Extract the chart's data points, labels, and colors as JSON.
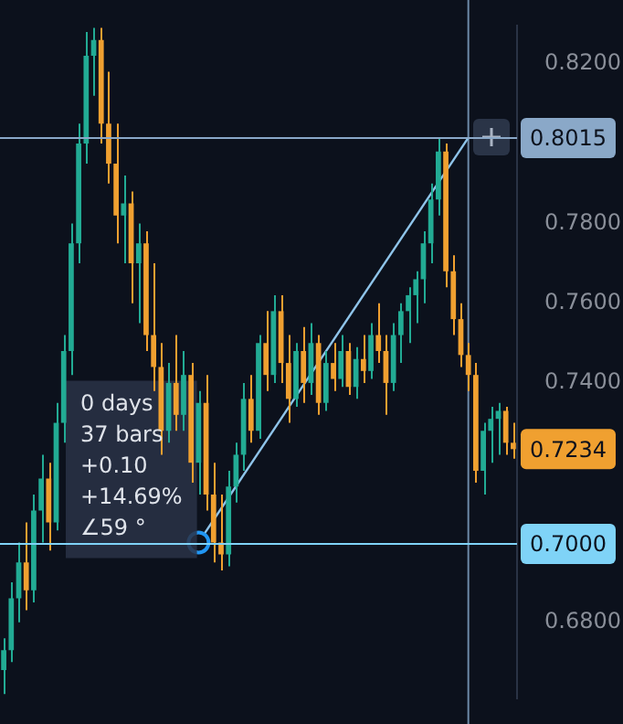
{
  "chart_data": {
    "type": "candlestick",
    "categories": [
      null,
      null,
      null,
      null,
      null,
      null,
      null,
      null,
      null,
      null,
      null,
      null,
      null,
      null,
      null,
      null,
      null,
      null,
      null,
      null,
      null,
      null,
      null,
      null,
      null,
      null,
      null,
      null,
      null,
      null,
      null,
      null,
      null,
      null,
      null,
      null,
      null,
      null,
      null,
      null,
      null,
      null,
      null,
      null,
      null,
      null,
      null,
      null,
      null,
      null,
      null,
      null,
      null,
      null,
      null,
      null,
      null,
      null,
      null,
      null,
      null,
      null,
      null,
      null,
      null,
      null,
      null,
      null,
      null
    ],
    "ohlc": [
      [
        0.668,
        0.676,
        0.662,
        0.673
      ],
      [
        0.673,
        0.69,
        0.67,
        0.686
      ],
      [
        0.686,
        0.7,
        0.68,
        0.695
      ],
      [
        0.695,
        0.705,
        0.683,
        0.688
      ],
      [
        0.688,
        0.712,
        0.685,
        0.708
      ],
      [
        0.708,
        0.722,
        0.7,
        0.716
      ],
      [
        0.716,
        0.72,
        0.698,
        0.705
      ],
      [
        0.705,
        0.735,
        0.703,
        0.73
      ],
      [
        0.73,
        0.752,
        0.725,
        0.748
      ],
      [
        0.748,
        0.78,
        0.742,
        0.775
      ],
      [
        0.775,
        0.805,
        0.77,
        0.8
      ],
      [
        0.8,
        0.828,
        0.795,
        0.822
      ],
      [
        0.822,
        0.829,
        0.812,
        0.826
      ],
      [
        0.826,
        0.829,
        0.8,
        0.805
      ],
      [
        0.805,
        0.818,
        0.79,
        0.795
      ],
      [
        0.795,
        0.805,
        0.775,
        0.782
      ],
      [
        0.782,
        0.792,
        0.77,
        0.785
      ],
      [
        0.785,
        0.788,
        0.76,
        0.77
      ],
      [
        0.77,
        0.78,
        0.755,
        0.775
      ],
      [
        0.775,
        0.778,
        0.748,
        0.752
      ],
      [
        0.752,
        0.77,
        0.738,
        0.744
      ],
      [
        0.744,
        0.75,
        0.722,
        0.728
      ],
      [
        0.728,
        0.745,
        0.725,
        0.74
      ],
      [
        0.74,
        0.752,
        0.728,
        0.732
      ],
      [
        0.732,
        0.748,
        0.728,
        0.742
      ],
      [
        0.742,
        0.745,
        0.715,
        0.72
      ],
      [
        0.72,
        0.738,
        0.712,
        0.735
      ],
      [
        0.735,
        0.742,
        0.708,
        0.712
      ],
      [
        0.712,
        0.72,
        0.695,
        0.7
      ],
      [
        0.7,
        0.712,
        0.693,
        0.697
      ],
      [
        0.697,
        0.718,
        0.694,
        0.714
      ],
      [
        0.714,
        0.725,
        0.71,
        0.722
      ],
      [
        0.722,
        0.74,
        0.718,
        0.736
      ],
      [
        0.736,
        0.742,
        0.725,
        0.728
      ],
      [
        0.728,
        0.752,
        0.726,
        0.75
      ],
      [
        0.75,
        0.758,
        0.738,
        0.742
      ],
      [
        0.742,
        0.762,
        0.74,
        0.758
      ],
      [
        0.758,
        0.762,
        0.74,
        0.745
      ],
      [
        0.745,
        0.752,
        0.73,
        0.736
      ],
      [
        0.736,
        0.75,
        0.734,
        0.748
      ],
      [
        0.748,
        0.754,
        0.735,
        0.74
      ],
      [
        0.74,
        0.755,
        0.737,
        0.75
      ],
      [
        0.75,
        0.752,
        0.732,
        0.735
      ],
      [
        0.735,
        0.748,
        0.733,
        0.745
      ],
      [
        0.745,
        0.75,
        0.738,
        0.741
      ],
      [
        0.741,
        0.752,
        0.739,
        0.748
      ],
      [
        0.748,
        0.75,
        0.737,
        0.739
      ],
      [
        0.739,
        0.749,
        0.736,
        0.746
      ],
      [
        0.746,
        0.752,
        0.74,
        0.743
      ],
      [
        0.743,
        0.755,
        0.741,
        0.752
      ],
      [
        0.752,
        0.76,
        0.745,
        0.748
      ],
      [
        0.748,
        0.752,
        0.732,
        0.74
      ],
      [
        0.74,
        0.755,
        0.738,
        0.752
      ],
      [
        0.752,
        0.76,
        0.745,
        0.758
      ],
      [
        0.758,
        0.764,
        0.75,
        0.762
      ],
      [
        0.762,
        0.768,
        0.755,
        0.766
      ],
      [
        0.766,
        0.778,
        0.76,
        0.775
      ],
      [
        0.775,
        0.79,
        0.77,
        0.786
      ],
      [
        0.786,
        0.8015,
        0.782,
        0.798
      ],
      [
        0.798,
        0.8,
        0.764,
        0.768
      ],
      [
        0.768,
        0.772,
        0.752,
        0.756
      ],
      [
        0.756,
        0.76,
        0.744,
        0.747
      ],
      [
        0.747,
        0.75,
        0.738,
        0.742
      ],
      [
        0.742,
        0.745,
        0.715,
        0.718
      ],
      [
        0.718,
        0.73,
        0.712,
        0.728
      ],
      [
        0.728,
        0.734,
        0.72,
        0.731
      ],
      [
        0.731,
        0.735,
        0.722,
        0.733
      ],
      [
        0.733,
        0.734,
        0.722,
        0.725
      ],
      [
        0.725,
        0.73,
        0.721,
        0.7234
      ]
    ],
    "colors": [
      "#22ab94",
      "#22ab94",
      "#22ab94",
      "#f0a030",
      "#22ab94",
      "#22ab94",
      "#f0a030",
      "#22ab94",
      "#22ab94",
      "#22ab94",
      "#22ab94",
      "#22ab94",
      "#22ab94",
      "#f0a030",
      "#f0a030",
      "#f0a030",
      "#22ab94",
      "#f0a030",
      "#22ab94",
      "#f0a030",
      "#f0a030",
      "#f0a030",
      "#22ab94",
      "#f0a030",
      "#22ab94",
      "#f0a030",
      "#22ab94",
      "#f0a030",
      "#f0a030",
      "#f0a030",
      "#22ab94",
      "#22ab94",
      "#22ab94",
      "#f0a030",
      "#22ab94",
      "#f0a030",
      "#22ab94",
      "#f0a030",
      "#f0a030",
      "#22ab94",
      "#f0a030",
      "#22ab94",
      "#f0a030",
      "#22ab94",
      "#f0a030",
      "#22ab94",
      "#f0a030",
      "#22ab94",
      "#f0a030",
      "#22ab94",
      "#f0a030",
      "#f0a030",
      "#22ab94",
      "#22ab94",
      "#22ab94",
      "#22ab94",
      "#22ab94",
      "#22ab94",
      "#22ab94",
      "#f0a030",
      "#f0a030",
      "#f0a030",
      "#f0a030",
      "#f0a030",
      "#22ab94",
      "#22ab94",
      "#22ab94",
      "#f0a030",
      "#f0a030"
    ],
    "ylim": [
      0.661,
      0.8295
    ],
    "yticks": [
      {
        "value": 0.68,
        "label": "0.6800"
      },
      {
        "value": 0.74,
        "label": "0.7400"
      },
      {
        "value": 0.76,
        "label": "0.7600"
      },
      {
        "value": 0.78,
        "label": "0.7800"
      },
      {
        "value": 0.82,
        "label": "0.8200"
      }
    ],
    "ref_lines": [
      {
        "axis": "y",
        "value": 0.8015,
        "label": "0.8015",
        "color": "#8aa8c8"
      },
      {
        "axis": "y",
        "value": 0.7,
        "label": "0.7000",
        "color": "#7fd3f7"
      }
    ],
    "annotations": [
      "0 days",
      "37 bars",
      "+0.10",
      "+14.69%",
      "∠59 °",
      "0.7234"
    ],
    "grid": false,
    "legend": false
  }
}
